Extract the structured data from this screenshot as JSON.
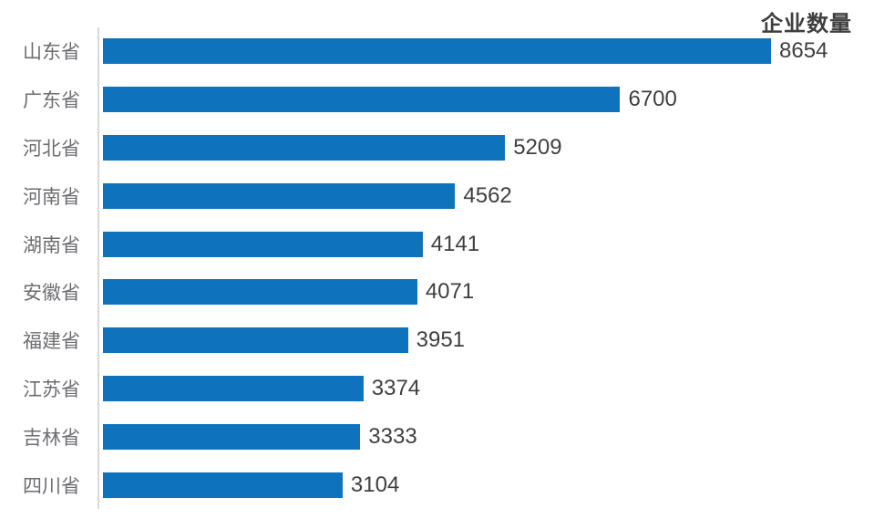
{
  "chart_data": {
    "type": "bar",
    "orientation": "horizontal",
    "title": "企业数量",
    "categories": [
      "山东省",
      "广东省",
      "河北省",
      "河南省",
      "湖南省",
      "安徽省",
      "福建省",
      "江苏省",
      "吉林省",
      "四川省"
    ],
    "values": [
      8654,
      6700,
      5209,
      4562,
      4141,
      4071,
      3951,
      3374,
      3333,
      3104
    ],
    "series": [
      {
        "name": "企业数量",
        "values": [
          8654,
          6700,
          5209,
          4562,
          4141,
          4071,
          3951,
          3374,
          3333,
          3104
        ]
      }
    ],
    "xlabel": "",
    "ylabel": "",
    "xlim": [
      0,
      8654
    ],
    "grid": false,
    "legend_position": "none",
    "data_labels": "outside-end",
    "colors": {
      "bar": "#0e73bc",
      "value_text": "#3f3f3f",
      "category_text": "#6d6d72",
      "title_text": "#3f3f3f",
      "axis_line": "#d8d8d8",
      "background": "#ffffff"
    }
  }
}
